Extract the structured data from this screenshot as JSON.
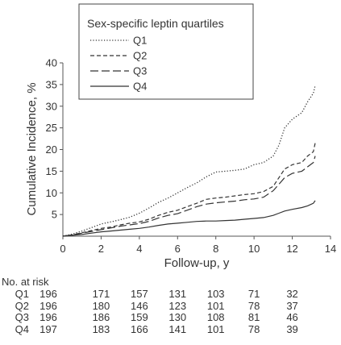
{
  "chart_data": {
    "type": "line",
    "xlabel": "Follow-up, y",
    "ylabel": "Cumulative Incidence, %",
    "xlim": [
      0,
      14
    ],
    "ylim": [
      0,
      40
    ],
    "xticks": [
      0,
      2,
      4,
      6,
      8,
      10,
      12,
      14
    ],
    "yticks": [
      5,
      10,
      15,
      20,
      25,
      30,
      35,
      40
    ],
    "grid": false,
    "legend": {
      "title": "Sex-specific leptin quartiles",
      "placement": "top-center",
      "entries": [
        "Q1",
        "Q2",
        "Q3",
        "Q4"
      ]
    },
    "series": [
      {
        "name": "Q1",
        "dash": "dotted",
        "color": "#333333",
        "x": [
          0,
          0.5,
          1,
          1.5,
          2,
          2.5,
          3,
          3.5,
          4,
          4.5,
          5,
          5.5,
          6,
          6.5,
          7,
          7.5,
          8,
          8.5,
          9,
          9.5,
          10,
          10.5,
          11,
          11.3,
          11.6,
          12,
          12.5,
          12.8,
          13.1,
          13.2
        ],
        "y": [
          0,
          0.5,
          1.2,
          2.0,
          2.8,
          3.3,
          3.8,
          4.4,
          5.3,
          6.5,
          7.8,
          8.8,
          10.0,
          11.2,
          12.3,
          13.7,
          14.8,
          15.0,
          15.2,
          15.5,
          16.5,
          17.0,
          18.5,
          21.0,
          25.0,
          27.0,
          28.5,
          31.0,
          33.0,
          34.8
        ]
      },
      {
        "name": "Q2",
        "dash": "short-dash",
        "color": "#333333",
        "x": [
          0,
          0.5,
          1,
          1.5,
          2,
          2.5,
          3,
          3.5,
          4,
          4.5,
          5,
          5.5,
          6,
          6.5,
          7,
          7.5,
          8,
          8.5,
          9,
          9.5,
          10,
          10.5,
          11,
          11.3,
          11.6,
          12,
          12.5,
          12.8,
          13.1,
          13.2
        ],
        "y": [
          0,
          0.3,
          0.8,
          1.3,
          1.8,
          2.1,
          2.6,
          3.0,
          3.3,
          3.9,
          4.8,
          5.5,
          6.0,
          6.8,
          7.6,
          8.5,
          8.8,
          9.0,
          9.3,
          9.6,
          9.8,
          10.3,
          11.5,
          13.5,
          15.5,
          16.5,
          17.0,
          18.5,
          19.5,
          21.5
        ]
      },
      {
        "name": "Q3",
        "dash": "long-dash",
        "color": "#333333",
        "x": [
          0,
          0.5,
          1,
          1.5,
          2,
          2.5,
          3,
          3.5,
          4,
          4.5,
          5,
          5.5,
          6,
          6.5,
          7,
          7.5,
          8,
          8.5,
          9,
          9.5,
          10,
          10.5,
          11,
          11.3,
          11.6,
          12,
          12.5,
          12.8,
          13.1,
          13.2
        ],
        "y": [
          0,
          0.3,
          0.7,
          1.1,
          1.5,
          1.9,
          2.3,
          2.6,
          2.9,
          3.4,
          4.2,
          4.8,
          5.2,
          6.0,
          6.8,
          7.4,
          7.7,
          7.9,
          8.1,
          8.4,
          8.6,
          9.0,
          10.5,
          12.0,
          13.5,
          14.5,
          15.0,
          16.0,
          17.0,
          18.5
        ]
      },
      {
        "name": "Q4",
        "dash": "solid",
        "color": "#333333",
        "x": [
          0,
          0.5,
          1,
          1.5,
          2,
          2.5,
          3,
          3.5,
          4,
          4.5,
          5,
          5.5,
          6,
          6.5,
          7,
          7.5,
          8,
          8.5,
          9,
          9.5,
          10,
          10.5,
          11,
          11.3,
          11.6,
          12,
          12.5,
          12.8,
          13.1,
          13.2
        ],
        "y": [
          0,
          0.2,
          0.4,
          0.7,
          1.0,
          1.2,
          1.4,
          1.6,
          1.8,
          2.1,
          2.5,
          2.8,
          3.0,
          3.2,
          3.4,
          3.5,
          3.5,
          3.6,
          3.7,
          3.9,
          4.1,
          4.3,
          4.8,
          5.3,
          5.8,
          6.2,
          6.6,
          7.0,
          7.6,
          8.2
        ]
      }
    ]
  },
  "risk_table": {
    "title": "No. at risk",
    "rows": [
      {
        "label": "Q1",
        "values": [
          "196",
          "171",
          "157",
          "131",
          "103",
          "71",
          "32"
        ]
      },
      {
        "label": "Q2",
        "values": [
          "196",
          "180",
          "146",
          "123",
          "101",
          "78",
          "37"
        ]
      },
      {
        "label": "Q3",
        "values": [
          "196",
          "186",
          "159",
          "130",
          "108",
          "81",
          "46"
        ]
      },
      {
        "label": "Q4",
        "values": [
          "197",
          "183",
          "166",
          "141",
          "101",
          "78",
          "39"
        ]
      }
    ]
  }
}
